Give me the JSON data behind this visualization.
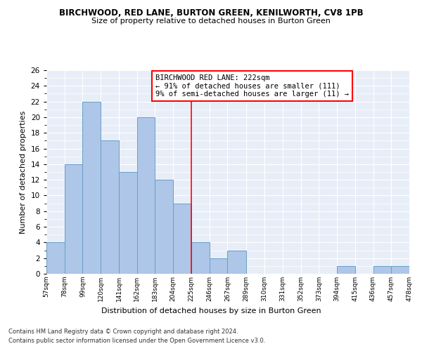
{
  "title": "BIRCHWOOD, RED LANE, BURTON GREEN, KENILWORTH, CV8 1PB",
  "subtitle": "Size of property relative to detached houses in Burton Green",
  "xlabel": "Distribution of detached houses by size in Burton Green",
  "ylabel": "Number of detached properties",
  "footnote1": "Contains HM Land Registry data © Crown copyright and database right 2024.",
  "footnote2": "Contains public sector information licensed under the Open Government Licence v3.0.",
  "annotation_title": "BIRCHWOOD RED LANE: 222sqm",
  "annotation_line1": "← 91% of detached houses are smaller (111)",
  "annotation_line2": "9% of semi-detached houses are larger (11) →",
  "bar_color": "#aec6e8",
  "bar_edge_color": "#6a9fc8",
  "vline_x": 225,
  "vline_color": "red",
  "background_color": "#e8eef8",
  "bin_edges": [
    57,
    78,
    99,
    120,
    141,
    162,
    183,
    204,
    225,
    246,
    267,
    289,
    310,
    331,
    352,
    373,
    394,
    415,
    436,
    457,
    478
  ],
  "bin_labels": [
    "57sqm",
    "78sqm",
    "99sqm",
    "120sqm",
    "141sqm",
    "162sqm",
    "183sqm",
    "204sqm",
    "225sqm",
    "246sqm",
    "267sqm",
    "289sqm",
    "310sqm",
    "331sqm",
    "352sqm",
    "373sqm",
    "394sqm",
    "415sqm",
    "436sqm",
    "457sqm",
    "478sqm"
  ],
  "counts": [
    4,
    14,
    22,
    17,
    13,
    20,
    12,
    9,
    4,
    2,
    3,
    0,
    0,
    0,
    0,
    0,
    1,
    0,
    1,
    1
  ],
  "ylim": [
    0,
    26
  ],
  "yticks": [
    0,
    2,
    4,
    6,
    8,
    10,
    12,
    14,
    16,
    18,
    20,
    22,
    24,
    26
  ]
}
